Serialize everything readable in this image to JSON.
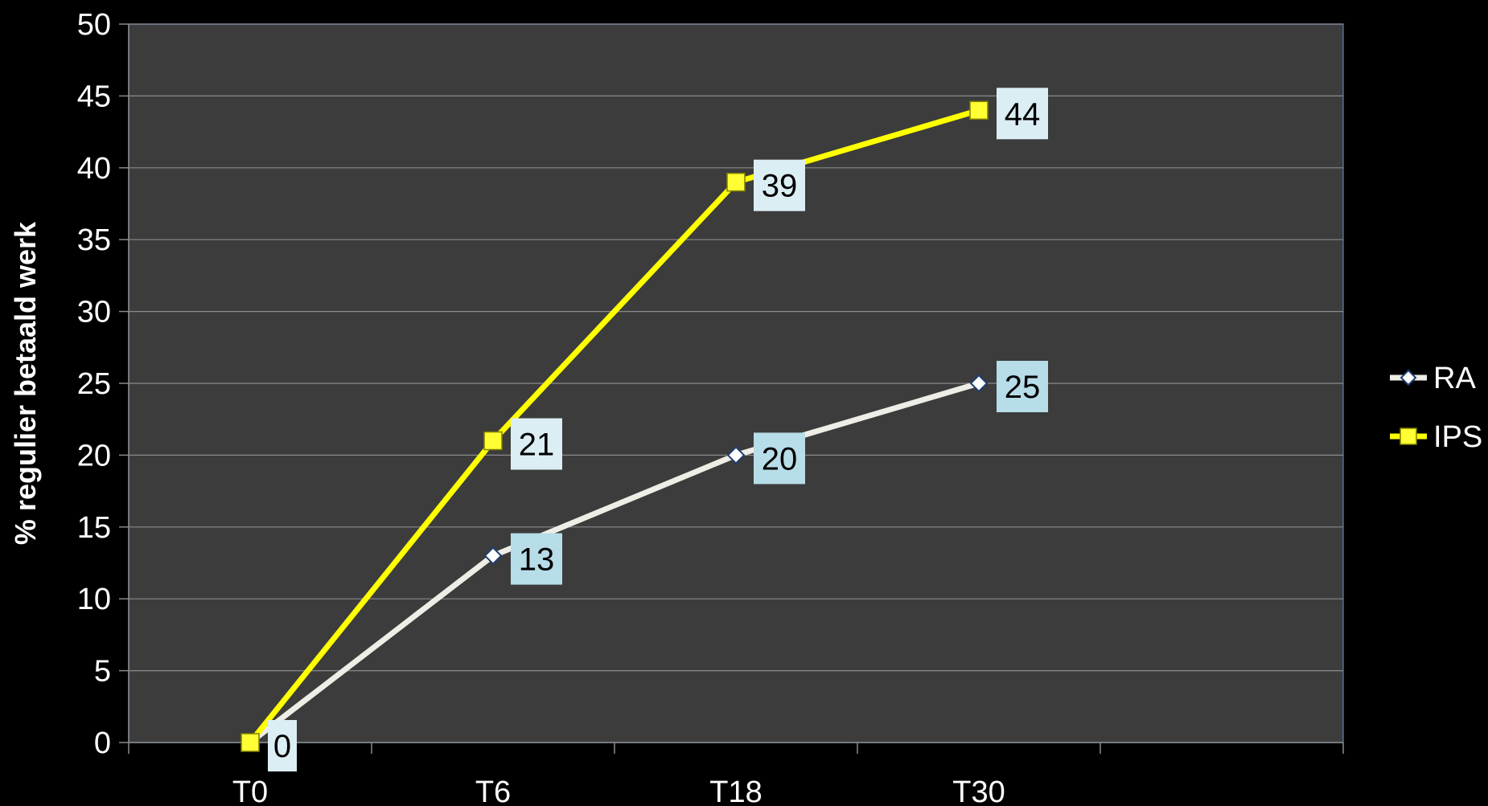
{
  "chart_data": {
    "type": "line",
    "title": "",
    "xlabel": "",
    "ylabel": "% regulier betaald werk",
    "categories": [
      "T0",
      "T6",
      "T18",
      "T30"
    ],
    "ylim": [
      0,
      50
    ],
    "yticks": [
      0,
      5,
      10,
      15,
      20,
      25,
      30,
      35,
      40,
      45,
      50
    ],
    "grid": true,
    "legend_position": "right",
    "plot_background": "#3c3c3c",
    "page_background": "#000000",
    "series": [
      {
        "name": "RA",
        "values": [
          0,
          13,
          20,
          25
        ],
        "color": "#eeede6",
        "marker": "diamond",
        "label_color": "#b7dde8"
      },
      {
        "name": "IPS",
        "values": [
          0,
          21,
          39,
          44
        ],
        "color": "#ffff00",
        "marker": "square",
        "label_color": "#dbeef3"
      }
    ],
    "data_labels": [
      {
        "series": "IPS",
        "index": 0,
        "text": "0"
      },
      {
        "series": "RA",
        "index": 1,
        "text": "13"
      },
      {
        "series": "RA",
        "index": 2,
        "text": "20"
      },
      {
        "series": "RA",
        "index": 3,
        "text": "25"
      },
      {
        "series": "IPS",
        "index": 1,
        "text": "21"
      },
      {
        "series": "IPS",
        "index": 2,
        "text": "39"
      },
      {
        "series": "IPS",
        "index": 3,
        "text": "44"
      }
    ]
  }
}
